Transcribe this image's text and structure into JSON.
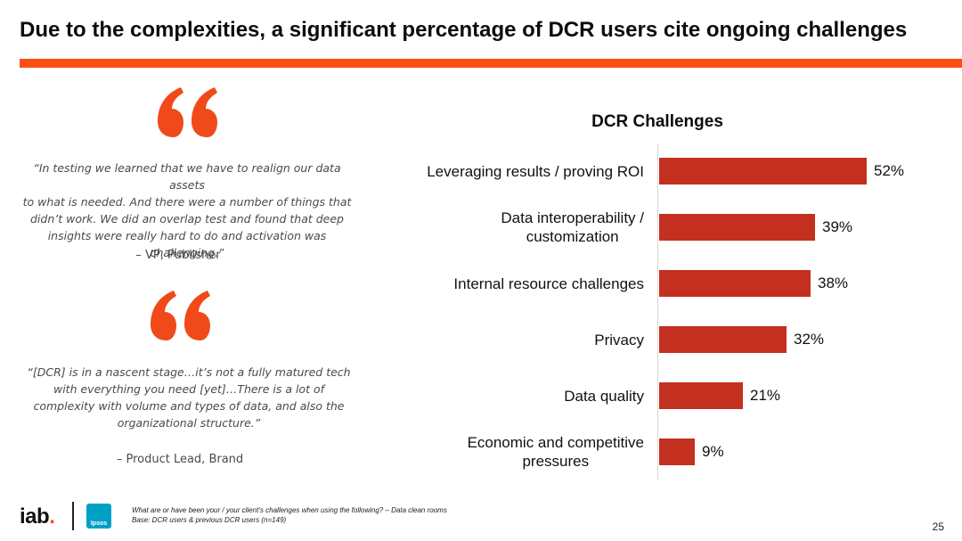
{
  "header": {
    "title": "Due to the complexities, a significant percentage of DCR users cite ongoing challenges",
    "accent_color": "#fb4f14"
  },
  "quotes": [
    {
      "icon": "quote-mark-icon",
      "lines": [
        "“In testing we learned that we have to realign our data assets",
        "to what is needed. And there were a number of things that",
        "didn’t work. We did an overlap test and found that deep",
        "insights were really hard to do and activation was challenging.”"
      ],
      "attribution": "– VP, Publisher"
    },
    {
      "icon": "quote-mark-icon",
      "lines": [
        "“[DCR] is in a nascent stage…it’s not a fully matured tech",
        "with everything you need [yet]…There  is a lot of",
        "complexity with volume and types of data, and also the",
        "organizational structure.”"
      ],
      "attribution": "– Product Lead, Brand"
    }
  ],
  "chart_data": {
    "type": "bar",
    "orientation": "horizontal",
    "title": "DCR Challenges",
    "categories": [
      "Leveraging results / proving ROI",
      "Data interoperability / customization",
      "Internal resource challenges",
      "Privacy",
      "Data quality",
      "Economic and competitive pressures"
    ],
    "category_lines": [
      [
        "Leveraging results / proving ROI"
      ],
      [
        "Data interoperability /",
        "customization"
      ],
      [
        "Internal resource challenges"
      ],
      [
        "Privacy"
      ],
      [
        "Data quality"
      ],
      [
        "Economic and competitive",
        "pressures"
      ]
    ],
    "values": [
      52,
      39,
      38,
      32,
      21,
      9
    ],
    "value_labels": [
      "52%",
      "39%",
      "38%",
      "32%",
      "21%",
      "9%"
    ],
    "bar_color": "#c3301f",
    "grid": false,
    "xlim": [
      0,
      60
    ]
  },
  "footer": {
    "logo_text": "iab",
    "logo_dot": ".",
    "partner_logo": "Ipsos",
    "note_line1": "What are or have been your / your client’s challenges when using the following? – Data clean rooms",
    "note_line2": "Base: DCR users & previous DCR users (n=149)",
    "page_number": "25"
  }
}
